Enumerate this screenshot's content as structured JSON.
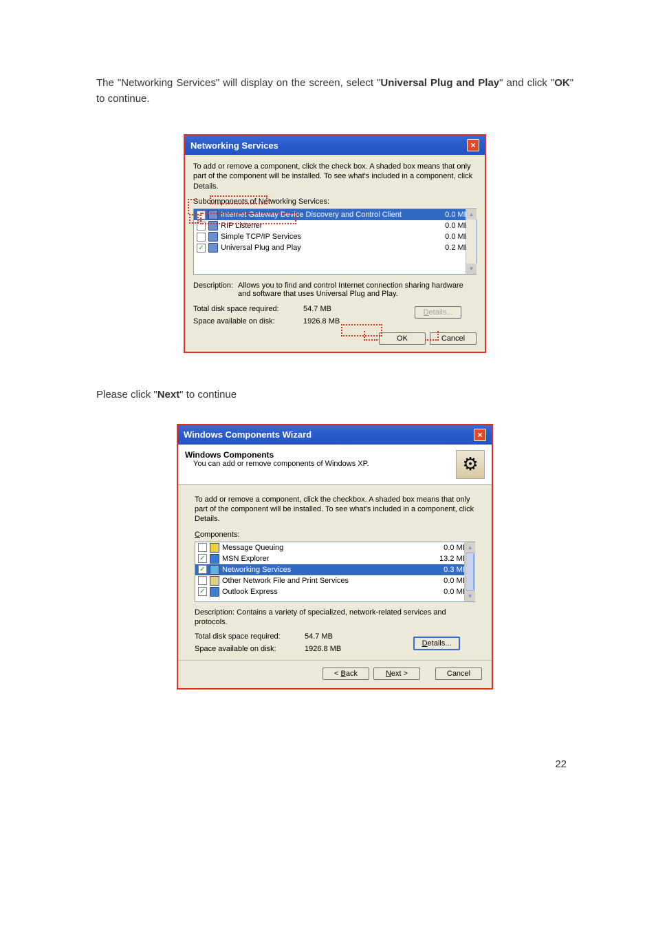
{
  "page_number": 22,
  "intro1_a": "The \"Networking Services\" will display on the screen, select \"",
  "intro1_b": "Universal Plug and Play",
  "intro1_c": "\" and click \"",
  "intro1_d": "OK",
  "intro1_e": "\" to continue.",
  "dlg1": {
    "title": "Networking Services",
    "desc_top": "To add or remove a component, click the check box. A shaded box means that only part of the component will be installed. To see what's included in a component, click Details.",
    "sub_label": "Subcomponents of Networking Services:",
    "rows": [
      {
        "checked": true,
        "selected": true,
        "label": "Internet Gateway Device Discovery and Control Client",
        "size": "0.0 MB"
      },
      {
        "checked": false,
        "selected": false,
        "label": "RIP Listener",
        "size": "0.0 MB"
      },
      {
        "checked": false,
        "selected": false,
        "label": "Simple TCP/IP Services",
        "size": "0.0 MB"
      },
      {
        "checked": true,
        "selected": false,
        "label": "Universal Plug and Play",
        "size": "0.2 MB"
      }
    ],
    "desc_label": "Description:",
    "desc_text": "Allows you to find and control Internet connection sharing hardware and software that uses Universal Plug and Play.",
    "req_label": "Total disk space required:",
    "req_val": "54.7 MB",
    "avail_label": "Space available on disk:",
    "avail_val": "1926.8 MB",
    "details_btn": "Details...",
    "ok_btn": "OK",
    "cancel_btn": "Cancel"
  },
  "intro2_a": "Please click \"",
  "intro2_b": "Next",
  "intro2_c": "\" to continue",
  "dlg2": {
    "title": "Windows Components Wizard",
    "header_title": "Windows Components",
    "header_sub": "You can add or remove components of Windows XP.",
    "desc_top": "To add or remove a component, click the checkbox. A shaded box means that only part of the component will be installed. To see what's included in a component, click Details.",
    "comp_label": "Components:",
    "rows": [
      {
        "checked": false,
        "selected": false,
        "label": "Message Queuing",
        "size": "0.0 MB",
        "iconcls": "msg-icon"
      },
      {
        "checked": true,
        "selected": false,
        "label": "MSN Explorer",
        "size": "13.2 MB",
        "iconcls": "msn-icon"
      },
      {
        "checked": true,
        "selected": true,
        "label": "Networking Services",
        "size": "0.3 MB",
        "iconcls": "net-icon"
      },
      {
        "checked": false,
        "selected": false,
        "label": "Other Network File and Print Services",
        "size": "0.0 MB",
        "iconcls": "other-icon"
      },
      {
        "checked": true,
        "selected": false,
        "label": "Outlook Express",
        "size": "0.0 MB",
        "iconcls": "outlook-icon"
      }
    ],
    "desc_label": "Description:",
    "desc_text": "Contains a variety of specialized, network-related services and protocols.",
    "req_label": "Total disk space required:",
    "req_val": "54.7 MB",
    "avail_label": "Space available on disk:",
    "avail_val": "1926.8 MB",
    "details_btn": "Details...",
    "back_btn": "< Back",
    "next_btn": "Next >",
    "cancel_btn": "Cancel"
  }
}
